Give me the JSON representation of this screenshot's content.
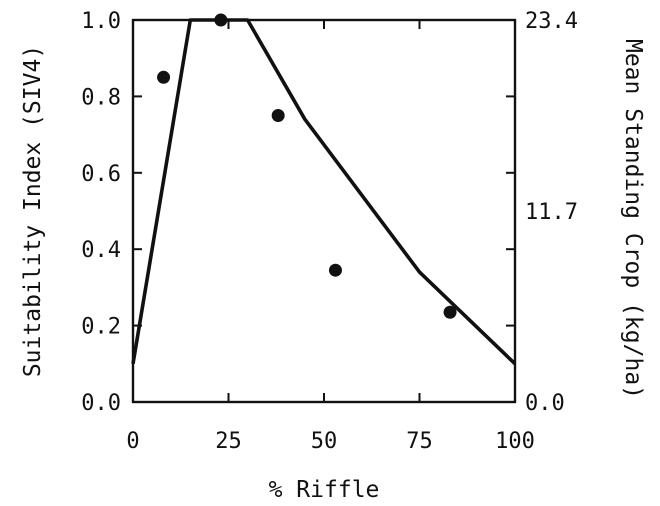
{
  "chart_data": {
    "type": "line",
    "xlabel": "% Riffle",
    "ylabel": "Suitability Index (SIV4)",
    "y2label": "Mean Standing Crop (kg/ha)",
    "xlim": [
      0,
      100
    ],
    "ylim": [
      0,
      1.0
    ],
    "y2lim": [
      0,
      23.4
    ],
    "x_ticks": [
      0,
      25,
      50,
      75,
      100
    ],
    "x_tick_labels": [
      "0",
      "25",
      "50",
      "75",
      "100"
    ],
    "y_ticks": [
      0,
      0.2,
      0.4,
      0.6,
      0.8,
      1.0
    ],
    "y_tick_labels": [
      "0.0",
      "0.2",
      "0.4",
      "0.6",
      "0.8",
      "1.0"
    ],
    "y2_ticks": [
      0.0,
      11.7,
      23.4
    ],
    "y2_tick_labels": [
      "0.0",
      "11.7",
      "23.4"
    ],
    "grid": false,
    "series": [
      {
        "kind": "line",
        "x": [
          0,
          15,
          30,
          45,
          60,
          75,
          100
        ],
        "y": [
          0.1,
          1.0,
          1.0,
          0.74,
          0.54,
          0.34,
          0.1
        ]
      },
      {
        "kind": "scatter",
        "x": [
          8,
          23,
          38,
          53,
          83
        ],
        "y": [
          0.85,
          1.0,
          0.75,
          0.345,
          0.235
        ]
      }
    ],
    "colors": {
      "ink": "#111111",
      "background": "#ffffff"
    }
  }
}
